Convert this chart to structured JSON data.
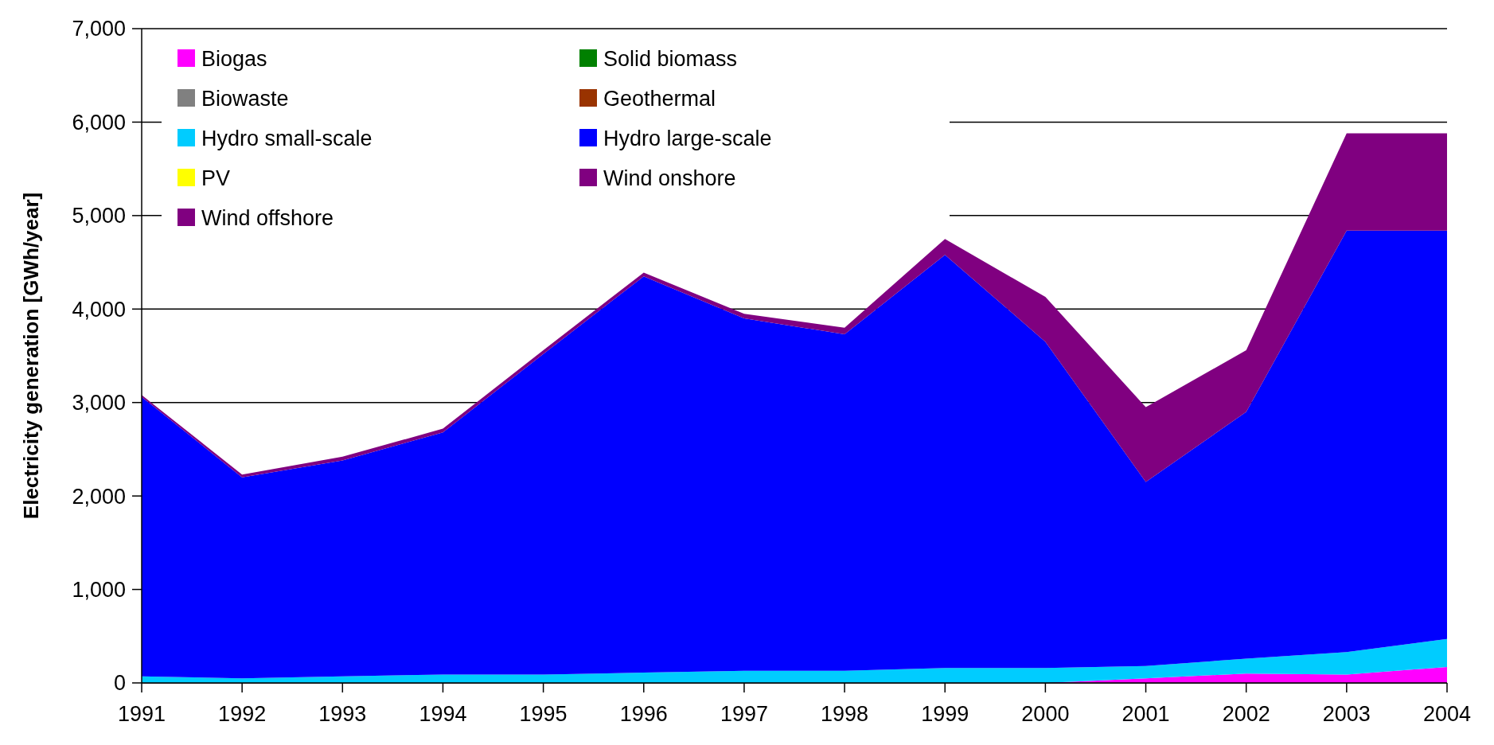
{
  "chart_data": {
    "type": "area",
    "stacked": true,
    "ylabel": "Electricity generation [GWh/year]",
    "x": [
      1991,
      1992,
      1993,
      1994,
      1995,
      1996,
      1997,
      1998,
      1999,
      2000,
      2001,
      2002,
      2003,
      2004
    ],
    "xlim": [
      1991,
      2004
    ],
    "xticks": [
      1991,
      1992,
      1993,
      1994,
      1995,
      1996,
      1997,
      1998,
      1999,
      2000,
      2001,
      2002,
      2003,
      2004
    ],
    "ylim": [
      0,
      7000
    ],
    "yticks": [
      {
        "value": 0,
        "label": "0"
      },
      {
        "value": 1000,
        "label": "1,000"
      },
      {
        "value": 2000,
        "label": "2,000"
      },
      {
        "value": 3000,
        "label": "3,000"
      },
      {
        "value": 4000,
        "label": "4,000"
      },
      {
        "value": 5000,
        "label": "5,000"
      },
      {
        "value": 6000,
        "label": "6,000"
      },
      {
        "value": 7000,
        "label": "7,000"
      }
    ],
    "grid": "y",
    "legend": "top left",
    "series": [
      {
        "name": "Biogas",
        "color": "#ff00ff",
        "values": [
          0,
          0,
          0,
          0,
          0,
          0,
          0,
          0,
          0,
          0,
          50,
          100,
          90,
          170
        ]
      },
      {
        "name": "Solid biomass",
        "color": "#008000",
        "values": [
          null,
          null,
          null,
          null,
          null,
          null,
          null,
          null,
          null,
          null,
          null,
          null,
          null,
          null
        ]
      },
      {
        "name": "Biowaste",
        "color": "#808080",
        "values": [
          null,
          null,
          null,
          null,
          null,
          null,
          null,
          null,
          null,
          null,
          null,
          null,
          null,
          null
        ]
      },
      {
        "name": "Geothermal",
        "color": "#993300",
        "values": [
          null,
          null,
          null,
          null,
          null,
          null,
          null,
          null,
          null,
          null,
          null,
          null,
          null,
          null
        ]
      },
      {
        "name": "Hydro small-scale",
        "color": "#00ccff",
        "values": [
          70,
          50,
          70,
          90,
          90,
          110,
          130,
          130,
          160,
          160,
          130,
          160,
          240,
          300
        ]
      },
      {
        "name": "Hydro large-scale",
        "color": "#0000ff",
        "values": [
          2990,
          2150,
          2310,
          2590,
          3430,
          4240,
          3770,
          3600,
          4420,
          3490,
          1970,
          2640,
          4510,
          4370
        ]
      },
      {
        "name": "PV",
        "color": "#ffff00",
        "values": [
          null,
          null,
          null,
          null,
          null,
          null,
          null,
          null,
          null,
          null,
          null,
          null,
          null,
          null
        ]
      },
      {
        "name": "Wind onshore",
        "color": "#800080",
        "values": [
          20,
          30,
          40,
          40,
          40,
          40,
          50,
          70,
          170,
          480,
          800,
          660,
          1040,
          1040
        ]
      },
      {
        "name": "Wind offshore",
        "color": "#800080",
        "values": [
          null,
          null,
          null,
          null,
          null,
          null,
          null,
          null,
          null,
          null,
          null,
          null,
          null,
          null
        ]
      }
    ]
  }
}
